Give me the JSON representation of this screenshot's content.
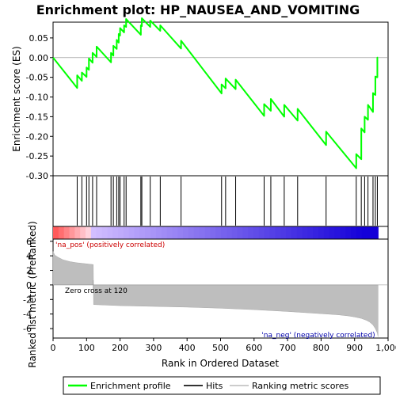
{
  "chart_data": {
    "type": "line",
    "title": "Enrichment plot: HP_NAUSEA_AND_VOMITING",
    "xlabel": "Rank in Ordered Dataset",
    "ylabel_top": "Enrichment score (ES)",
    "ylabel_bottom": "Ranked list metric (PreRanked)",
    "xlim": [
      0,
      1000
    ],
    "x_ticks": [
      0,
      100,
      200,
      300,
      400,
      500,
      600,
      700,
      800,
      900,
      1000
    ],
    "x_tick_labels": [
      "0",
      "100",
      "200",
      "300",
      "400",
      "500",
      "600",
      "700",
      "800",
      "900",
      "1,000"
    ],
    "es_ylim": [
      -0.3,
      0.09
    ],
    "es_ticks": [
      0.05,
      0.0,
      -0.05,
      -0.1,
      -0.15,
      -0.2,
      -0.25,
      -0.3
    ],
    "es_tick_labels": [
      "0.05",
      "0.00",
      "-0.05",
      "-0.10",
      "-0.15",
      "-0.20",
      "-0.25",
      "-0.30"
    ],
    "metric_ylim": [
      -7.3,
      6.3
    ],
    "metric_ticks": [
      6,
      4,
      2,
      0,
      -2,
      -4,
      -6
    ],
    "metric_tick_labels": [
      "6",
      "4",
      "2",
      "0",
      "-2",
      "-4",
      "-6"
    ],
    "n_genes": 970,
    "zero_cross": 120,
    "zero_cross_label": "Zero cross at 120",
    "pos_label": "'na_pos' (positively correlated)",
    "neg_label": "'na_neg' (negatively correlated)",
    "hits": [
      72,
      86,
      100,
      107,
      118,
      130,
      173,
      180,
      190,
      196,
      200,
      212,
      218,
      262,
      265,
      290,
      320,
      382,
      503,
      515,
      545,
      630,
      650,
      690,
      730,
      815,
      905,
      920,
      930,
      940,
      955,
      962,
      968
    ],
    "es_curve": {
      "x": [
        0,
        72,
        72,
        86,
        86,
        100,
        100,
        107,
        107,
        118,
        118,
        130,
        130,
        173,
        173,
        180,
        180,
        190,
        190,
        196,
        196,
        200,
        200,
        212,
        212,
        218,
        218,
        262,
        262,
        265,
        265,
        290,
        290,
        320,
        320,
        382,
        382,
        503,
        503,
        515,
        515,
        545,
        545,
        630,
        630,
        650,
        650,
        690,
        690,
        730,
        730,
        815,
        815,
        905,
        905,
        920,
        920,
        930,
        930,
        940,
        940,
        955,
        955,
        962,
        962,
        968,
        968,
        970
      ],
      "y": [
        0.0,
        -0.077,
        -0.045,
        -0.059,
        -0.038,
        -0.049,
        -0.025,
        -0.031,
        -0.002,
        -0.013,
        0.012,
        0.002,
        0.028,
        -0.012,
        0.012,
        0.005,
        0.03,
        0.022,
        0.045,
        0.038,
        0.06,
        0.056,
        0.075,
        0.064,
        0.082,
        0.078,
        0.098,
        0.058,
        0.082,
        0.08,
        0.1,
        0.078,
        0.094,
        0.068,
        0.082,
        0.023,
        0.043,
        -0.091,
        -0.068,
        -0.078,
        -0.053,
        -0.08,
        -0.056,
        -0.148,
        -0.118,
        -0.135,
        -0.105,
        -0.15,
        -0.12,
        -0.16,
        -0.13,
        -0.222,
        -0.188,
        -0.281,
        -0.245,
        -0.258,
        -0.18,
        -0.19,
        -0.15,
        -0.158,
        -0.12,
        -0.138,
        -0.09,
        -0.095,
        -0.048,
        -0.05,
        0.0,
        0.0
      ]
    },
    "metric_curve": {
      "x": [
        0,
        5,
        15,
        30,
        50,
        70,
        90,
        110,
        120,
        121,
        200,
        300,
        400,
        500,
        600,
        700,
        800,
        850,
        880,
        900,
        920,
        935,
        945,
        955,
        962,
        968,
        970
      ],
      "y": [
        4.6,
        4.1,
        3.8,
        3.45,
        3.2,
        3.05,
        2.95,
        2.85,
        2.8,
        -2.7,
        -2.85,
        -2.95,
        -3.05,
        -3.2,
        -3.4,
        -3.65,
        -3.95,
        -4.1,
        -4.25,
        -4.4,
        -4.6,
        -4.85,
        -5.1,
        -5.5,
        -6.0,
        -6.6,
        -7.1
      ]
    },
    "legend": {
      "items": [
        {
          "label": "Enrichment profile",
          "color": "#00ff00"
        },
        {
          "label": "Hits",
          "color": "#000000"
        },
        {
          "label": "Ranking metric scores",
          "color": "#cccccc"
        }
      ]
    },
    "colors": {
      "es_line": "#00ff00",
      "hit": "#000000",
      "metric_fill": "#bebebe",
      "pos_text": "#cc0000",
      "neg_text": "#0000aa"
    }
  }
}
